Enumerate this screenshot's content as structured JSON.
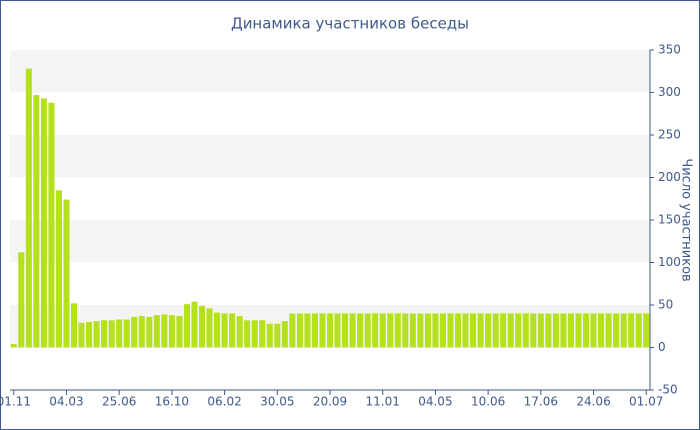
{
  "chart_data": {
    "type": "bar",
    "title": "Динамика участников беседы",
    "y_label": "Число участников",
    "categories": [
      "01.11",
      null,
      null,
      null,
      null,
      null,
      null,
      "04.03",
      null,
      null,
      null,
      null,
      null,
      null,
      "25.06",
      null,
      null,
      null,
      null,
      null,
      null,
      "16.10",
      null,
      null,
      null,
      null,
      null,
      null,
      "06.02",
      null,
      null,
      null,
      null,
      null,
      null,
      "30.05",
      null,
      null,
      null,
      null,
      null,
      null,
      "20.09",
      null,
      null,
      null,
      null,
      null,
      null,
      "11.01",
      null,
      null,
      null,
      null,
      null,
      null,
      "04.05",
      null,
      null,
      null,
      null,
      null,
      null,
      "10.06",
      null,
      null,
      null,
      null,
      null,
      null,
      "17.06",
      null,
      null,
      null,
      null,
      null,
      null,
      "24.06",
      null,
      null,
      null,
      null,
      null,
      null,
      "01.07"
    ],
    "values": [
      4,
      112,
      328,
      297,
      293,
      288,
      185,
      174,
      52,
      29,
      30,
      31,
      32,
      32,
      33,
      33,
      36,
      37,
      36,
      38,
      39,
      38,
      37,
      51,
      54,
      49,
      46,
      41,
      40,
      40,
      37,
      32,
      32,
      32,
      28,
      28,
      31,
      40,
      40,
      40,
      40,
      40,
      40,
      40,
      40,
      40,
      40,
      40,
      40,
      40,
      40,
      40,
      40,
      40,
      40,
      40,
      40,
      40,
      40,
      40,
      40,
      40,
      40,
      40,
      40,
      40,
      40,
      40,
      40,
      40,
      40,
      40,
      40,
      40,
      40,
      40,
      40,
      40,
      40,
      40,
      40,
      40,
      40,
      40,
      40
    ],
    "color": "#b4e01e",
    "ylim": [
      -50,
      350
    ],
    "yticks": [
      -50,
      0,
      50,
      100,
      150,
      200,
      250,
      300,
      350
    ],
    "grid": true,
    "y_axis_side": "right"
  }
}
